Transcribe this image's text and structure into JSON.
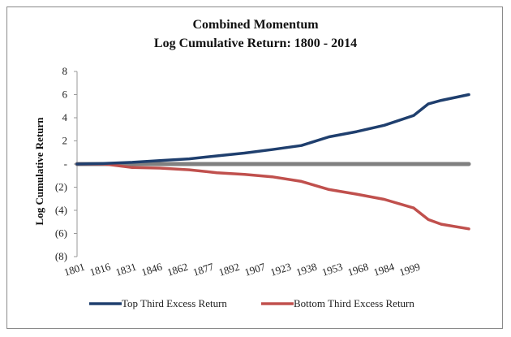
{
  "chart_data": {
    "type": "line",
    "title": "Combined Momentum",
    "subtitle": "Log Cumulative Return: 1800 - 2014",
    "xlabel": "",
    "ylabel": "Log Cumulative Return",
    "x_ticks": [
      "1801",
      "1816",
      "1831",
      "1846",
      "1862",
      "1877",
      "1892",
      "1907",
      "1923",
      "1938",
      "1953",
      "1968",
      "1984",
      "1999"
    ],
    "y_ticks": [
      {
        "value": 8,
        "label": "8"
      },
      {
        "value": 6,
        "label": "6"
      },
      {
        "value": 4,
        "label": "4"
      },
      {
        "value": 2,
        "label": "2"
      },
      {
        "value": 0,
        "label": "-"
      },
      {
        "value": -2,
        "label": "(2)"
      },
      {
        "value": -4,
        "label": "(4)"
      },
      {
        "value": -6,
        "label": "(6)"
      },
      {
        "value": -8,
        "label": "(8)"
      }
    ],
    "xlim": [
      1801,
      2014
    ],
    "ylim": [
      -8,
      8
    ],
    "grid": false,
    "legend_position": "bottom",
    "series": [
      {
        "name": "Top Third Excess Return",
        "color": "#1f3f6e",
        "x": [
          1801,
          1816,
          1831,
          1846,
          1862,
          1877,
          1892,
          1907,
          1923,
          1938,
          1953,
          1968,
          1984,
          1992,
          1999,
          2014
        ],
        "values": [
          0.0,
          0.05,
          0.15,
          0.3,
          0.45,
          0.7,
          0.95,
          1.25,
          1.6,
          2.35,
          2.8,
          3.35,
          4.2,
          5.2,
          5.5,
          6.0
        ]
      },
      {
        "name": "Bottom Third Excess Return",
        "color": "#c0504d",
        "x": [
          1801,
          1816,
          1831,
          1846,
          1862,
          1877,
          1892,
          1907,
          1923,
          1938,
          1953,
          1968,
          1984,
          1992,
          1999,
          2014
        ],
        "values": [
          0.0,
          0.0,
          -0.3,
          -0.35,
          -0.5,
          -0.75,
          -0.9,
          -1.1,
          -1.5,
          -2.2,
          -2.6,
          -3.05,
          -3.8,
          -4.8,
          -5.2,
          -5.6
        ]
      },
      {
        "name": "",
        "color": "#808080",
        "x": [
          1801,
          2014
        ],
        "values": [
          0,
          0
        ]
      }
    ]
  }
}
